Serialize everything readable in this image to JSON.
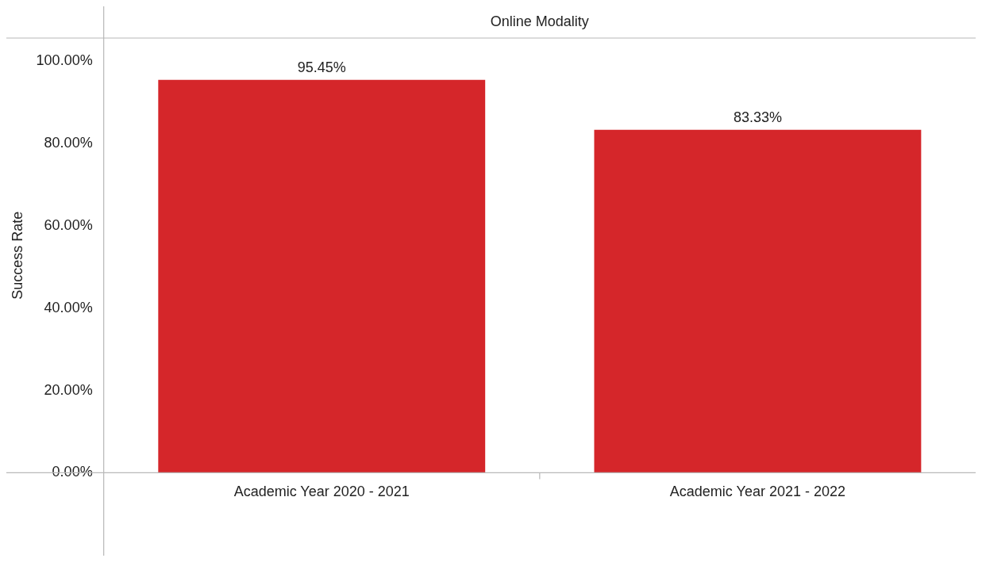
{
  "chart_data": {
    "type": "bar",
    "title": "Online Modality",
    "ylabel": "Success Rate",
    "categories": [
      "Academic Year 2020 - 2021",
      "Academic Year 2021 - 2022"
    ],
    "values": [
      95.45,
      83.33
    ],
    "color": "#d5262a",
    "value_labels": [
      "95.45%",
      "83.33%"
    ],
    "ylim": [
      0,
      105.6
    ],
    "yticks": [
      {
        "value": 0,
        "label": "0.00%"
      },
      {
        "value": 20,
        "label": "20.00%"
      },
      {
        "value": 40,
        "label": "40.00%"
      },
      {
        "value": 60,
        "label": "60.00%"
      },
      {
        "value": 80,
        "label": "80.00%"
      },
      {
        "value": 100,
        "label": "100.00%"
      }
    ],
    "grid": false,
    "legend": false
  }
}
